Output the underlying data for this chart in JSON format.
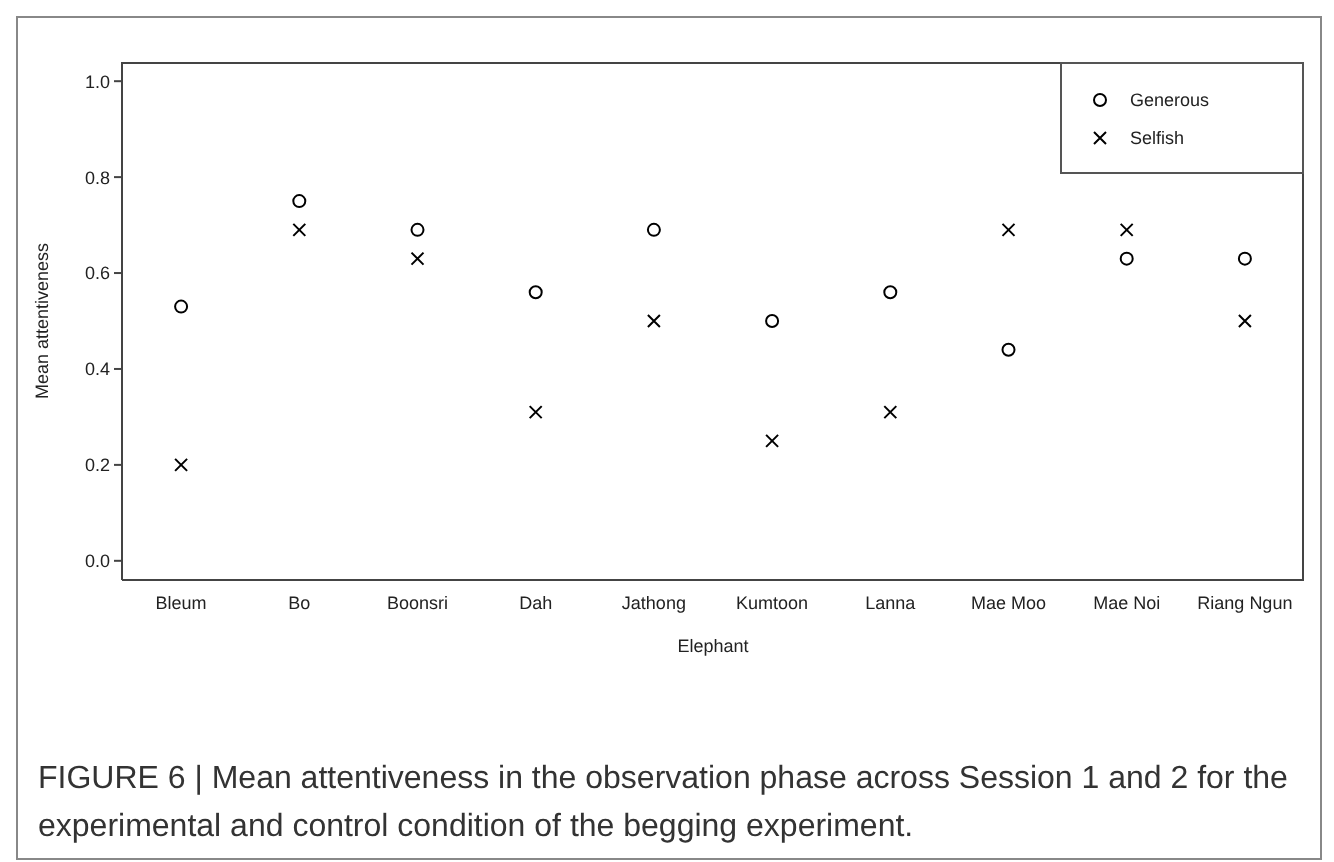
{
  "chart_data": {
    "type": "scatter",
    "xlabel": "Elephant",
    "ylabel": "Mean attentiveness",
    "annotations": [
      "FIGURE 6 | Mean attentiveness in the observation phase across Session 1 and 2 for the experimental and control condition of the begging experiment."
    ],
    "categories": [
      "Bleum",
      "Bo",
      "Boonsri",
      "Dah",
      "Jathong",
      "Kumtoon",
      "Lanna",
      "Mae Moo",
      "Mae Noi",
      "Riang Ngun"
    ],
    "series": [
      {
        "name": "Generous",
        "color": "#000000",
        "marker": "circle",
        "values": [
          0.53,
          0.75,
          0.69,
          0.56,
          0.69,
          0.5,
          0.56,
          0.44,
          0.63,
          0.63
        ]
      },
      {
        "name": "Selfish",
        "color": "#000000",
        "marker": "cross",
        "values": [
          0.2,
          0.69,
          0.63,
          0.31,
          0.5,
          0.25,
          0.31,
          0.69,
          0.69,
          0.5
        ]
      }
    ],
    "ylim": [
      -0.04,
      1.04
    ],
    "yticks": [
      {
        "value": 0,
        "label": "0.0"
      },
      0.2,
      0.4,
      0.6,
      0.8,
      {
        "value": 1,
        "label": "1.0"
      }
    ],
    "grid": false,
    "legend": "top right"
  }
}
